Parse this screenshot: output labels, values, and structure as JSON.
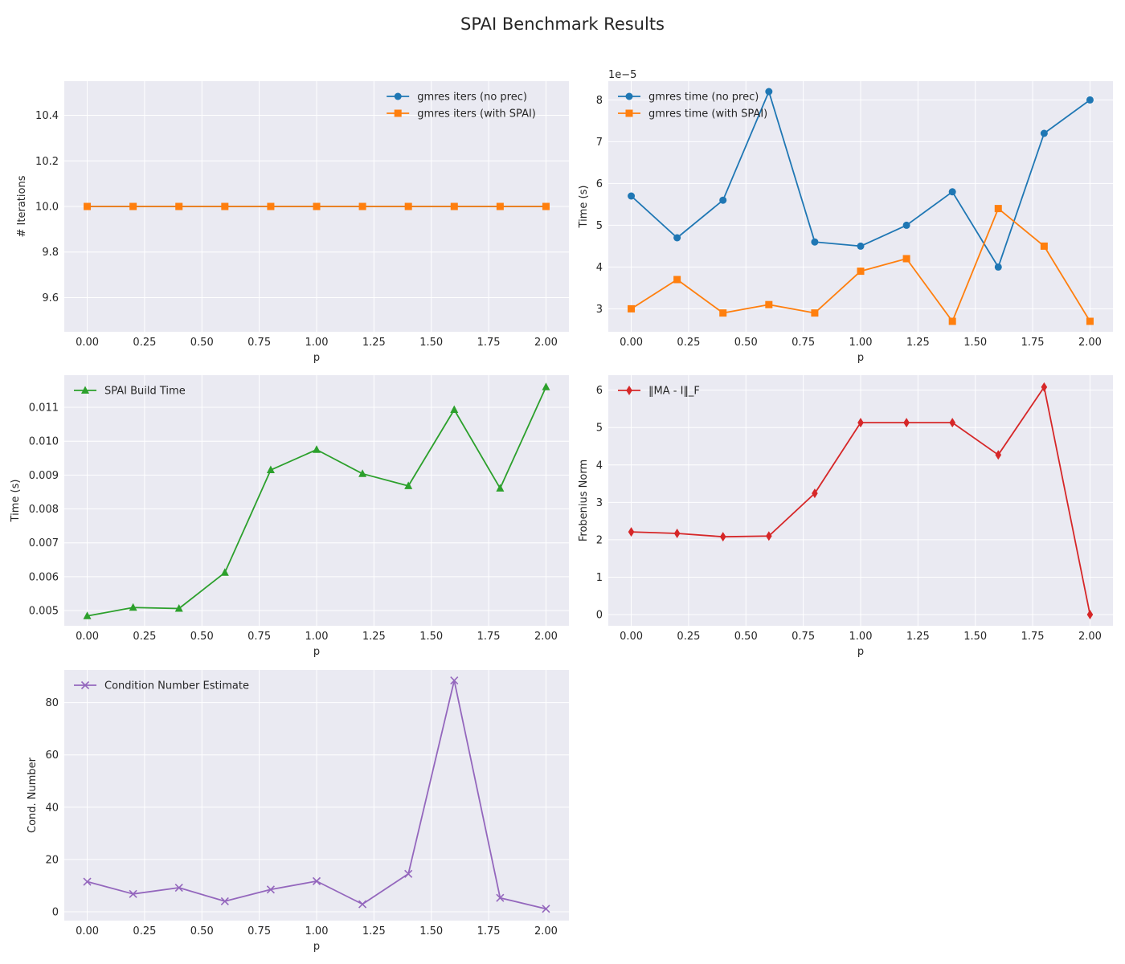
{
  "figure_title": "SPAI Benchmark Results",
  "chart_data": [
    {
      "type": "line",
      "xlabel": "p",
      "ylabel": "# Iterations",
      "xlim": [
        -0.1,
        2.1
      ],
      "ylim": [
        9.45,
        10.55
      ],
      "xticks": [
        "0.00",
        "0.25",
        "0.50",
        "0.75",
        "1.00",
        "1.25",
        "1.50",
        "1.75",
        "2.00"
      ],
      "yticks": [
        "9.6",
        "9.8",
        "10.0",
        "10.2",
        "10.4"
      ],
      "legend": "top-right",
      "grid": true,
      "x": [
        0.0,
        0.2,
        0.4,
        0.6,
        0.8,
        1.0,
        1.2,
        1.4,
        1.6,
        1.8,
        2.0
      ],
      "series": [
        {
          "name": "gmres iters (no prec)",
          "color": "#1f77b4",
          "marker": "circle",
          "values": [
            10,
            10,
            10,
            10,
            10,
            10,
            10,
            10,
            10,
            10,
            10
          ]
        },
        {
          "name": "gmres iters (with SPAI)",
          "color": "#ff7f0e",
          "marker": "square",
          "values": [
            10,
            10,
            10,
            10,
            10,
            10,
            10,
            10,
            10,
            10,
            10
          ]
        }
      ]
    },
    {
      "type": "line",
      "xlabel": "p",
      "ylabel": "Time (s)",
      "offset_label": "1e−5",
      "xlim": [
        -0.1,
        2.1
      ],
      "ylim": [
        2.45,
        8.45
      ],
      "xticks": [
        "0.00",
        "0.25",
        "0.50",
        "0.75",
        "1.00",
        "1.25",
        "1.50",
        "1.75",
        "2.00"
      ],
      "yticks": [
        "3",
        "4",
        "5",
        "6",
        "7",
        "8"
      ],
      "legend": "top-left",
      "grid": true,
      "x": [
        0.0,
        0.2,
        0.4,
        0.6,
        0.8,
        1.0,
        1.2,
        1.4,
        1.6,
        1.8,
        2.0
      ],
      "series": [
        {
          "name": "gmres time (no prec)",
          "color": "#1f77b4",
          "marker": "circle",
          "values": [
            5.7,
            4.7,
            5.6,
            8.2,
            4.6,
            4.5,
            5.0,
            5.8,
            4.0,
            7.2,
            8.0
          ]
        },
        {
          "name": "gmres time (with SPAI)",
          "color": "#ff7f0e",
          "marker": "square",
          "values": [
            3.0,
            3.7,
            2.9,
            3.1,
            2.9,
            3.9,
            4.2,
            2.7,
            5.4,
            4.5,
            2.7
          ]
        }
      ]
    },
    {
      "type": "line",
      "xlabel": "p",
      "ylabel": "Time (s)",
      "xlim": [
        -0.1,
        2.1
      ],
      "ylim": [
        0.00455,
        0.01195
      ],
      "xticks": [
        "0.00",
        "0.25",
        "0.50",
        "0.75",
        "1.00",
        "1.25",
        "1.50",
        "1.75",
        "2.00"
      ],
      "yticks": [
        "0.005",
        "0.006",
        "0.007",
        "0.008",
        "0.009",
        "0.010",
        "0.011"
      ],
      "legend": "top-left",
      "grid": true,
      "x": [
        0.0,
        0.2,
        0.4,
        0.6,
        0.8,
        1.0,
        1.2,
        1.4,
        1.6,
        1.8,
        2.0
      ],
      "series": [
        {
          "name": "SPAI Build Time",
          "color": "#2ca02c",
          "marker": "triangle",
          "values": [
            0.00484,
            0.00509,
            0.00506,
            0.00612,
            0.00915,
            0.00975,
            0.00904,
            0.00868,
            0.01093,
            0.00861,
            0.0116
          ]
        }
      ]
    },
    {
      "type": "line",
      "xlabel": "p",
      "ylabel": "Frobenius Norm",
      "xlim": [
        -0.1,
        2.1
      ],
      "ylim": [
        -0.3,
        6.4
      ],
      "xticks": [
        "0.00",
        "0.25",
        "0.50",
        "0.75",
        "1.00",
        "1.25",
        "1.50",
        "1.75",
        "2.00"
      ],
      "yticks": [
        "0",
        "1",
        "2",
        "3",
        "4",
        "5",
        "6"
      ],
      "legend": "top-left",
      "grid": true,
      "x": [
        0.0,
        0.2,
        0.4,
        0.6,
        0.8,
        1.0,
        1.2,
        1.4,
        1.6,
        1.8,
        2.0
      ],
      "series": [
        {
          "name": "‖MA - I‖_F",
          "color": "#d62728",
          "marker": "diamond",
          "values": [
            2.21,
            2.17,
            2.08,
            2.1,
            3.24,
            5.13,
            5.13,
            5.13,
            4.27,
            6.08,
            0.0
          ]
        }
      ]
    },
    {
      "type": "line",
      "xlabel": "p",
      "ylabel": "Cond. Number",
      "xlim": [
        -0.1,
        2.1
      ],
      "ylim": [
        -3.4,
        92.5
      ],
      "xticks": [
        "0.00",
        "0.25",
        "0.50",
        "0.75",
        "1.00",
        "1.25",
        "1.50",
        "1.75",
        "2.00"
      ],
      "yticks": [
        "0",
        "20",
        "40",
        "60",
        "80"
      ],
      "legend": "top-left",
      "grid": true,
      "x": [
        0.0,
        0.2,
        0.4,
        0.6,
        0.8,
        1.0,
        1.2,
        1.4,
        1.6,
        1.8,
        2.0
      ],
      "series": [
        {
          "name": "Condition Number Estimate",
          "color": "#9467bd",
          "marker": "x",
          "values": [
            11.5,
            6.8,
            9.2,
            4.0,
            8.5,
            11.7,
            2.9,
            14.5,
            88.5,
            5.3,
            1.1
          ]
        }
      ]
    }
  ]
}
